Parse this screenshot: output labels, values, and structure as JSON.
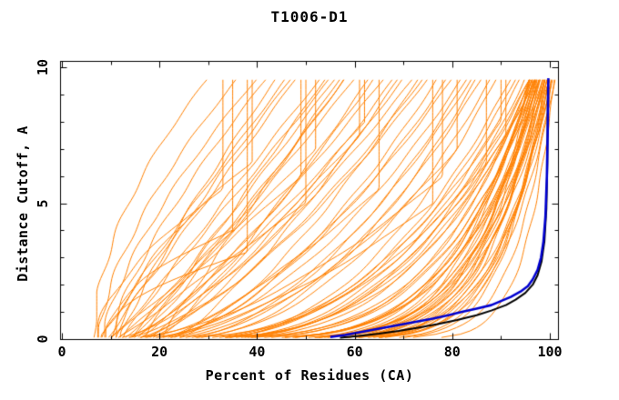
{
  "chart_data": {
    "type": "line",
    "title": "T1006-D1",
    "xlabel": "Percent of Residues (CA)",
    "ylabel": "Distance Cutoff, A",
    "xlim": [
      0,
      102
    ],
    "ylim": [
      0,
      10.2
    ],
    "x_ticks": [
      0,
      20,
      40,
      60,
      80,
      100
    ],
    "x_minor_ticks": [
      10,
      30,
      50,
      70,
      90
    ],
    "y_ticks": [
      0,
      5,
      10
    ],
    "y_minor_ticks": [
      1,
      2,
      3,
      4,
      6,
      7,
      8,
      9
    ],
    "grid": false,
    "legend": "none",
    "background": "#ffffff",
    "colors": {
      "model_curves": "#ff8000",
      "highlight_curve_blue": "#0000d0",
      "highlight_curve_black": "#000000",
      "frame": "#000000",
      "text": "#000000"
    },
    "curve_top_cutoff": 9.6,
    "orange_curve_format": "[x_pct_at_bottom, x_pct_at_top, shape_exponent, cutoff_where_vertical_run_begins]",
    "orange_curves": [
      [
        6.5,
        30,
        0.55,
        9.6
      ],
      [
        7,
        33,
        0.6,
        5.5
      ],
      [
        7.5,
        36,
        0.65,
        9.6
      ],
      [
        8,
        38,
        0.55,
        3.2
      ],
      [
        8.5,
        40,
        0.7,
        9.6
      ],
      [
        9,
        35,
        0.5,
        4.0
      ],
      [
        10,
        42,
        0.75,
        9.6
      ],
      [
        11,
        39,
        0.6,
        6.5
      ],
      [
        8,
        46,
        0.95,
        9.6
      ],
      [
        9,
        48,
        1.0,
        9.6
      ],
      [
        9.5,
        52,
        1.1,
        7.0
      ],
      [
        10,
        55,
        1.05,
        9.6
      ],
      [
        10.5,
        47,
        0.9,
        9.6
      ],
      [
        11,
        58,
        1.2,
        9.6
      ],
      [
        11.5,
        50,
        1.0,
        5.0
      ],
      [
        12,
        60,
        1.15,
        9.6
      ],
      [
        12.5,
        53,
        0.95,
        9.6
      ],
      [
        13,
        62,
        1.25,
        8.0
      ],
      [
        13.5,
        56,
        1.05,
        9.6
      ],
      [
        14,
        64,
        1.3,
        9.6
      ],
      [
        14.5,
        49,
        0.9,
        6.0
      ],
      [
        15,
        66,
        1.2,
        9.6
      ],
      [
        15.5,
        58,
        1.1,
        9.6
      ],
      [
        16,
        68,
        1.35,
        9.6
      ],
      [
        17,
        61,
        1.15,
        7.5
      ],
      [
        18,
        70,
        1.3,
        9.6
      ],
      [
        19,
        63,
        1.2,
        9.6
      ],
      [
        20,
        57,
        1.0,
        9.6
      ],
      [
        21,
        65,
        1.25,
        5.5
      ],
      [
        22,
        69,
        1.3,
        9.6
      ],
      [
        16.5,
        54,
        1.0,
        9.6
      ],
      [
        12,
        44,
        0.85,
        9.6
      ],
      [
        10,
        72,
        1.5,
        9.6
      ],
      [
        11,
        75,
        1.6,
        9.6
      ],
      [
        12,
        78,
        1.7,
        6.0
      ],
      [
        13,
        80,
        1.8,
        9.6
      ],
      [
        14,
        74,
        1.5,
        9.6
      ],
      [
        15,
        82,
        1.9,
        9.6
      ],
      [
        16,
        76,
        1.6,
        5.0
      ],
      [
        17,
        84,
        2.0,
        9.6
      ],
      [
        18,
        79,
        1.7,
        9.6
      ],
      [
        19,
        86,
        2.1,
        9.6
      ],
      [
        20,
        81,
        1.8,
        7.0
      ],
      [
        21,
        88,
        2.2,
        9.6
      ],
      [
        22,
        83,
        1.9,
        9.6
      ],
      [
        23,
        90,
        2.3,
        8.0
      ],
      [
        24,
        85,
        2.0,
        9.6
      ],
      [
        25,
        92,
        2.4,
        9.6
      ],
      [
        26,
        87,
        2.1,
        6.5
      ],
      [
        27,
        94,
        2.5,
        9.6
      ],
      [
        28,
        89,
        2.2,
        9.6
      ],
      [
        29,
        95,
        2.6,
        9.6
      ],
      [
        30,
        91,
        2.3,
        7.5
      ],
      [
        24,
        93,
        2.5,
        9.6
      ],
      [
        20,
        77,
        1.65,
        9.6
      ],
      [
        26,
        96,
        2.7,
        9.6
      ],
      [
        22,
        73,
        1.5,
        9.6
      ],
      [
        28,
        97,
        2.8,
        9.6
      ],
      [
        12,
        96,
        3.0,
        9.6
      ],
      [
        14,
        97,
        3.5,
        9.6
      ],
      [
        16,
        98,
        4.0,
        9.6
      ],
      [
        18,
        96.5,
        3.2,
        9.6
      ],
      [
        20,
        99,
        4.5,
        9.6
      ],
      [
        22,
        97.5,
        3.8,
        9.6
      ],
      [
        24,
        100,
        5.0,
        9.6
      ],
      [
        26,
        98.5,
        4.2,
        9.6
      ],
      [
        28,
        96,
        3.4,
        9.6
      ],
      [
        30,
        99.5,
        4.8,
        9.6
      ],
      [
        32,
        97,
        3.6,
        9.6
      ],
      [
        34,
        100.5,
        5.5,
        9.6
      ],
      [
        36,
        98,
        4.0,
        9.6
      ],
      [
        38,
        101,
        6.0,
        9.6
      ],
      [
        40,
        96.5,
        3.3,
        9.6
      ],
      [
        42,
        99,
        4.6,
        9.6
      ],
      [
        44,
        97.5,
        3.9,
        9.6
      ],
      [
        46,
        100,
        5.2,
        9.6
      ],
      [
        48,
        98.5,
        4.3,
        9.6
      ],
      [
        50,
        96,
        3.1,
        9.6
      ],
      [
        52,
        99.5,
        5.0,
        9.6
      ],
      [
        54,
        97,
        3.7,
        9.6
      ],
      [
        13,
        100,
        6.5,
        9.6
      ],
      [
        15,
        98,
        5.0,
        9.6
      ],
      [
        17,
        96,
        4.0,
        9.6
      ],
      [
        19,
        99,
        5.5,
        9.6
      ],
      [
        21,
        97,
        4.5,
        9.6
      ],
      [
        23,
        100.5,
        7.0,
        9.6
      ],
      [
        25,
        98,
        5.2,
        9.6
      ],
      [
        27,
        96.5,
        4.1,
        9.6
      ],
      [
        29,
        99,
        5.8,
        9.6
      ],
      [
        31,
        97.5,
        4.6,
        9.6
      ],
      [
        33,
        100,
        6.2,
        9.6
      ],
      [
        35,
        98.5,
        5.0,
        9.6
      ],
      [
        37,
        96,
        3.9,
        9.6
      ],
      [
        39,
        99.5,
        6.0,
        9.6
      ],
      [
        41,
        97,
        4.4,
        9.6
      ],
      [
        43,
        100.5,
        7.5,
        9.6
      ],
      [
        45,
        98,
        5.1,
        9.6
      ],
      [
        47,
        96.5,
        4.0,
        9.6
      ],
      [
        49,
        99,
        6.0,
        9.6
      ],
      [
        51,
        101,
        8.0,
        9.6
      ]
    ],
    "black_curve": [
      [
        57,
        0.05
      ],
      [
        61,
        0.12
      ],
      [
        65,
        0.2
      ],
      [
        69,
        0.3
      ],
      [
        73,
        0.42
      ],
      [
        77,
        0.55
      ],
      [
        81,
        0.7
      ],
      [
        85,
        0.88
      ],
      [
        88,
        1.05
      ],
      [
        91,
        1.25
      ],
      [
        93,
        1.45
      ],
      [
        95,
        1.7
      ],
      [
        96.5,
        2.0
      ],
      [
        97.5,
        2.35
      ],
      [
        98.3,
        2.85
      ],
      [
        98.9,
        3.6
      ],
      [
        99.3,
        4.8
      ],
      [
        99.5,
        6.5
      ],
      [
        99.6,
        9.3
      ]
    ],
    "blue_curve": [
      [
        55,
        0.08
      ],
      [
        58,
        0.15
      ],
      [
        61,
        0.25
      ],
      [
        64,
        0.35
      ],
      [
        67,
        0.45
      ],
      [
        70,
        0.55
      ],
      [
        73,
        0.65
      ],
      [
        76,
        0.75
      ],
      [
        79,
        0.87
      ],
      [
        82,
        1.0
      ],
      [
        85,
        1.12
      ],
      [
        88,
        1.25
      ],
      [
        90,
        1.4
      ],
      [
        92,
        1.55
      ],
      [
        94,
        1.75
      ],
      [
        95.5,
        1.95
      ],
      [
        96.5,
        2.2
      ],
      [
        97.5,
        2.55
      ],
      [
        98.2,
        3.0
      ],
      [
        98.7,
        3.6
      ],
      [
        99.1,
        4.5
      ],
      [
        99.4,
        6.0
      ],
      [
        99.6,
        8.0
      ],
      [
        99.7,
        9.6
      ]
    ]
  }
}
